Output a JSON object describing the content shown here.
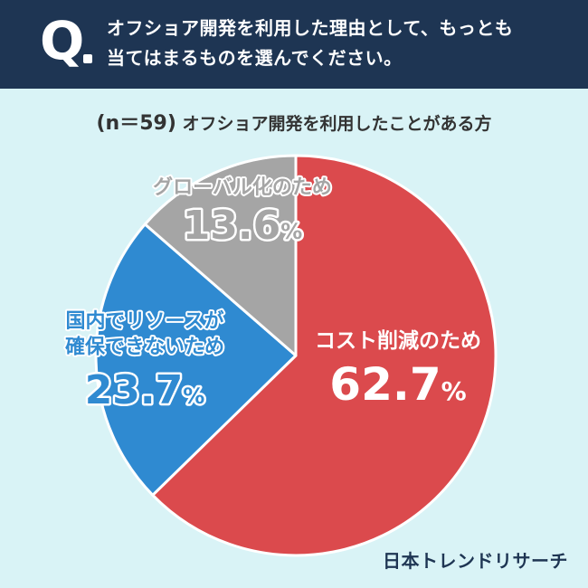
{
  "header": {
    "q_mark": "Q",
    "question": "オフショア開発を利用した理由として、もっとも\n当てはまるものを選んでください。"
  },
  "sample": {
    "n_label": "(n＝59)",
    "description": "オフショア開発を利用したことがある方"
  },
  "brand": {
    "logo_text": "日本トレンドリサーチ"
  },
  "colors": {
    "header_bg": "#1e3553",
    "page_bg": "#d9f3f6",
    "cost": "#db4a4d",
    "resource": "#2f8ad1",
    "global": "#a5a5a5"
  },
  "chart_data": {
    "type": "pie",
    "title": "",
    "slices": [
      {
        "label": "コスト削減のため",
        "label_lines": [
          "コスト削減のため"
        ],
        "value": 62.7,
        "value_text": "62.7",
        "unit": "%",
        "color": "#db4a4d"
      },
      {
        "label": "国内でリソースが確保できないため",
        "label_lines": [
          "国内でリソースが",
          "確保できないため"
        ],
        "value": 23.7,
        "value_text": "23.7",
        "unit": "%",
        "color": "#2f8ad1"
      },
      {
        "label": "グローバル化のため",
        "label_lines": [
          "グローバル化のため"
        ],
        "value": 13.6,
        "value_text": "13.6",
        "unit": "%",
        "color": "#a5a5a5"
      }
    ]
  }
}
